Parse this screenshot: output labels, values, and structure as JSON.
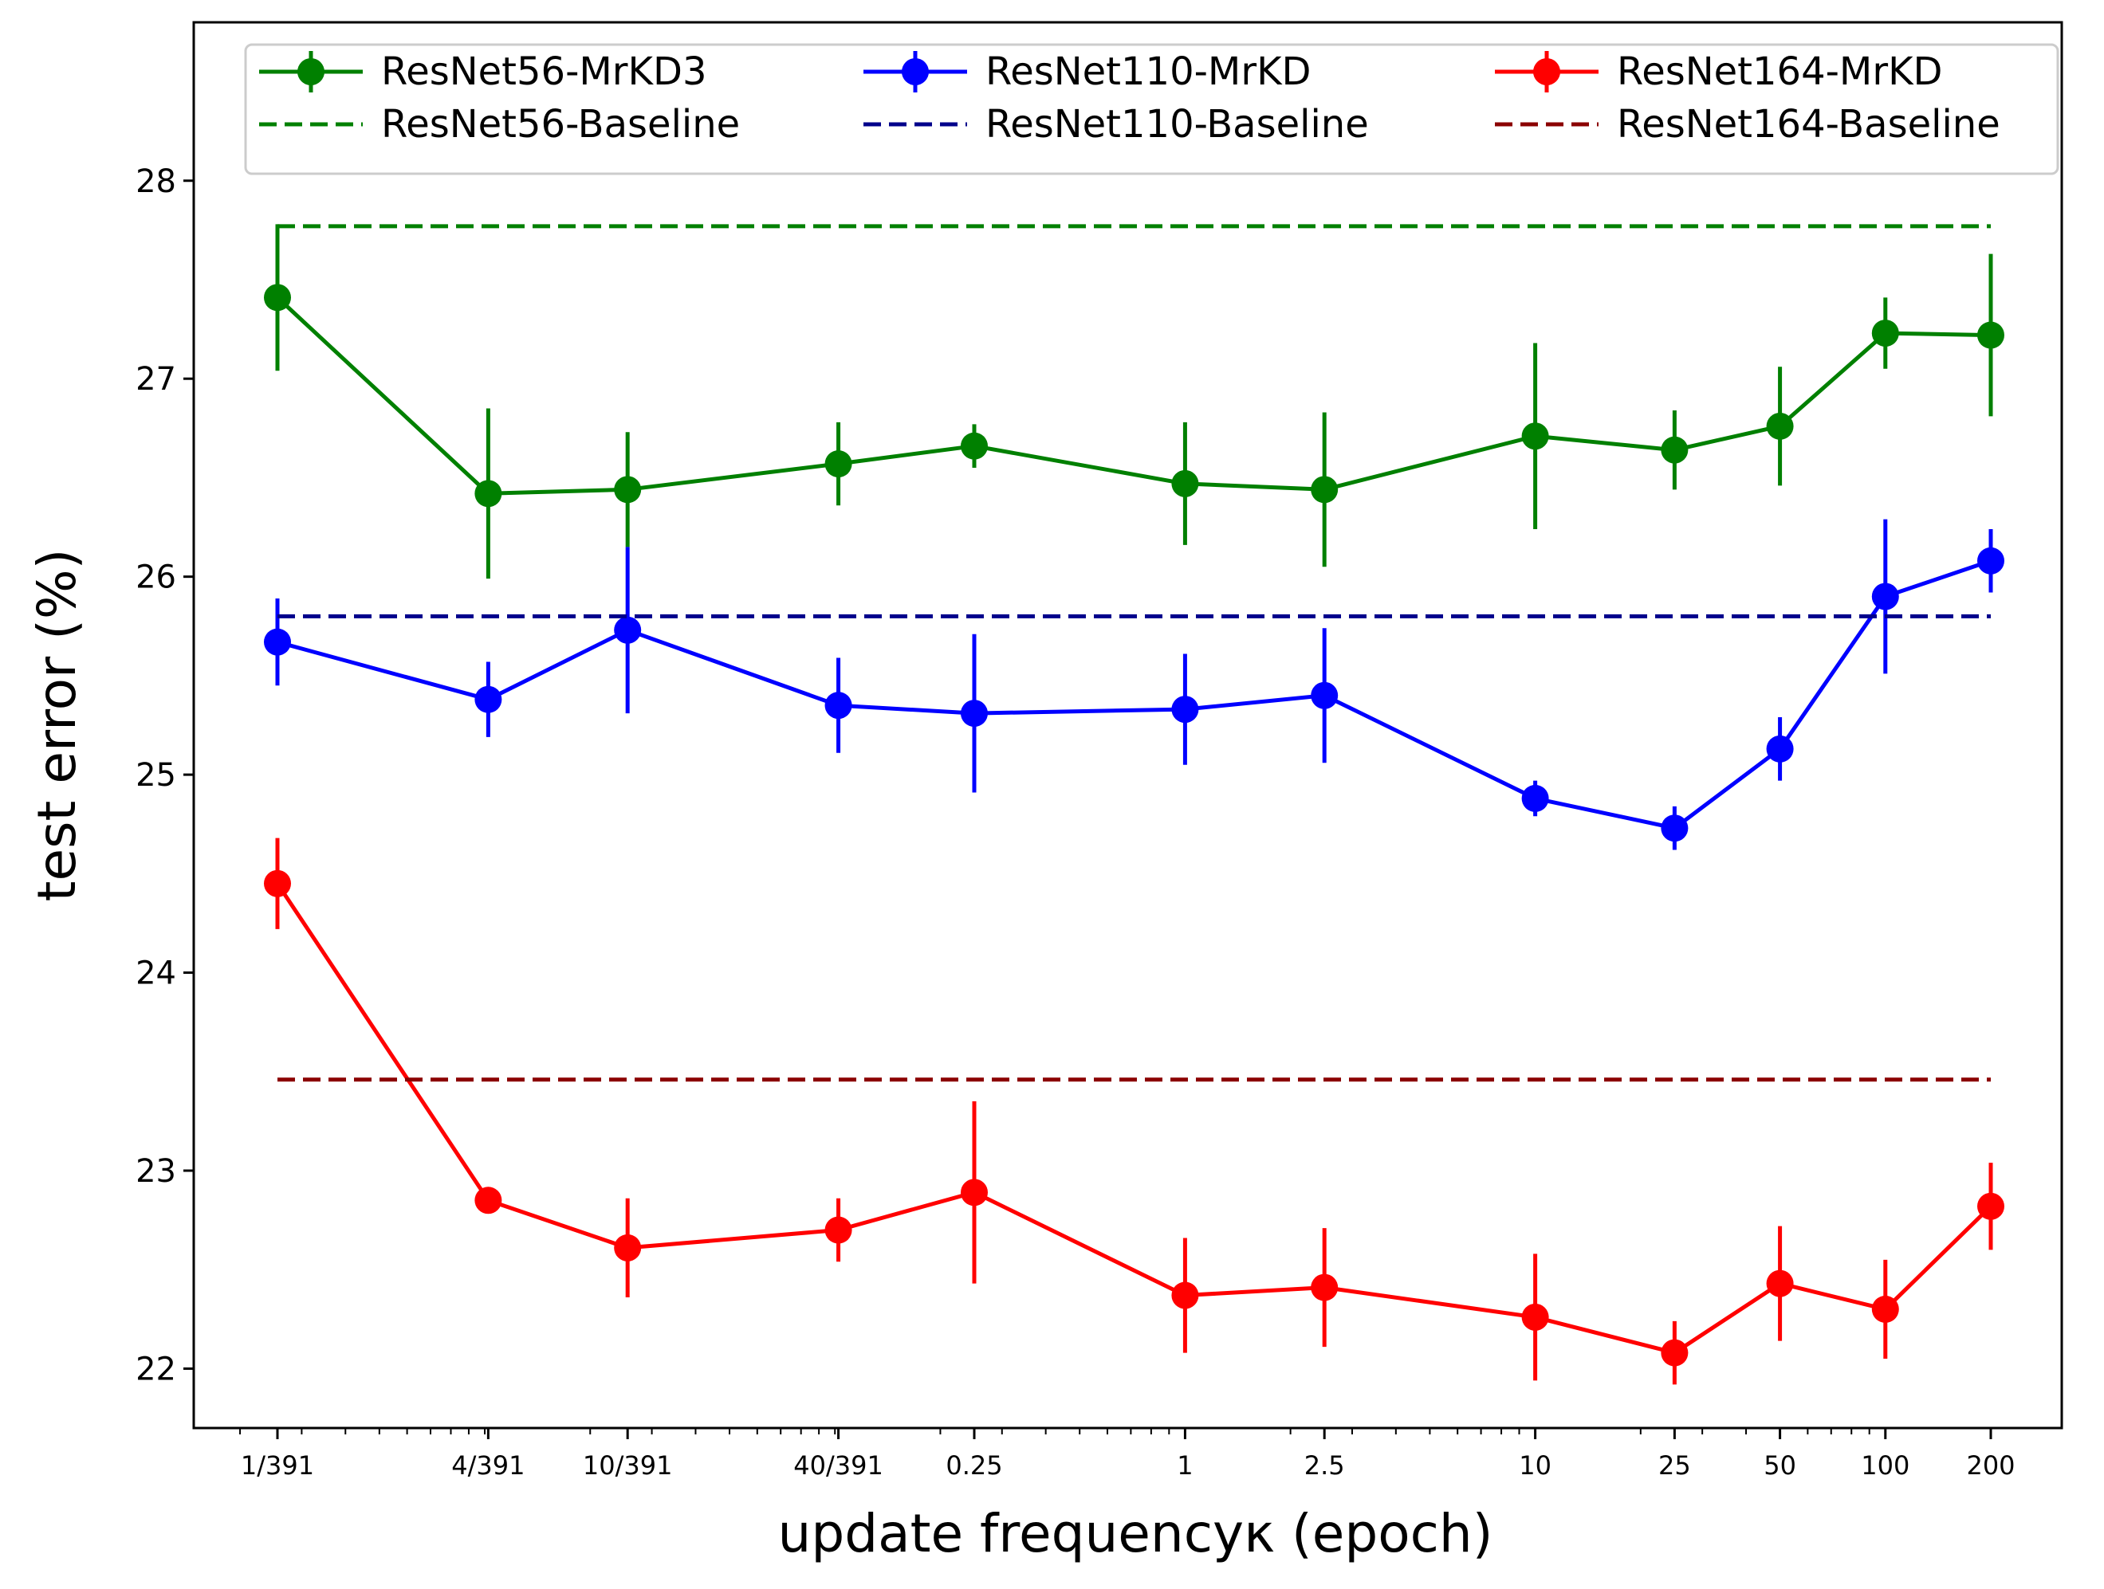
{
  "chart_data": {
    "type": "line",
    "xlabel": "update frequencyκ (epoch)",
    "ylabel": "test error (%)",
    "xscale": "log",
    "x": [
      0.002558,
      0.01023,
      0.02558,
      0.1023,
      0.25,
      1,
      2.5,
      10,
      25,
      50,
      100,
      200
    ],
    "xtick_labels": [
      "1/391",
      "4/391",
      "10/391",
      "40/391",
      "0.25",
      "1",
      "2.5",
      "10",
      "25",
      "50",
      "100",
      "200"
    ],
    "ylim": [
      21.7,
      28.8
    ],
    "yticks": [
      22,
      23,
      24,
      25,
      26,
      27,
      28
    ],
    "yticklabels": [
      "22",
      "23",
      "24",
      "25",
      "26",
      "27",
      "28"
    ],
    "legend_position": "top",
    "series": [
      {
        "name": "ResNet56-MrKD3",
        "color": "#008000",
        "style": "solid-markers-errorbars",
        "values": [
          27.41,
          26.42,
          26.44,
          26.57,
          26.66,
          26.47,
          26.44,
          26.71,
          26.64,
          26.76,
          27.23,
          27.22
        ],
        "errors": [
          0.37,
          0.43,
          0.29,
          0.21,
          0.11,
          0.31,
          0.39,
          0.47,
          0.2,
          0.3,
          0.18,
          0.41
        ]
      },
      {
        "name": "ResNet56-Baseline",
        "color": "#008000",
        "style": "dashed",
        "value": 27.77,
        "x_range": [
          0.002558,
          200
        ]
      },
      {
        "name": "ResNet110-MrKD",
        "color": "#0000ff",
        "style": "solid-markers-errorbars",
        "values": [
          25.67,
          25.38,
          25.73,
          25.35,
          25.31,
          25.33,
          25.4,
          24.88,
          24.73,
          25.13,
          25.9,
          26.08
        ],
        "errors": [
          0.22,
          0.19,
          0.42,
          0.24,
          0.4,
          0.28,
          0.34,
          0.09,
          0.11,
          0.16,
          0.39,
          0.16
        ]
      },
      {
        "name": "ResNet110-Baseline",
        "color": "#00008b",
        "style": "dashed",
        "value": 25.8,
        "x_range": [
          0.002558,
          200
        ]
      },
      {
        "name": "ResNet164-MrKD",
        "color": "#ff0000",
        "style": "solid-markers-errorbars",
        "values": [
          24.45,
          22.85,
          22.61,
          22.7,
          22.89,
          22.37,
          22.41,
          22.26,
          22.08,
          22.43,
          22.3,
          22.82
        ],
        "errors": [
          0.23,
          0.0,
          0.25,
          0.16,
          0.46,
          0.29,
          0.3,
          0.32,
          0.16,
          0.29,
          0.25,
          0.22
        ]
      },
      {
        "name": "ResNet164-Baseline",
        "color": "#8b0000",
        "style": "dashed",
        "value": 23.46,
        "x_range": [
          0.002558,
          200
        ]
      }
    ]
  }
}
